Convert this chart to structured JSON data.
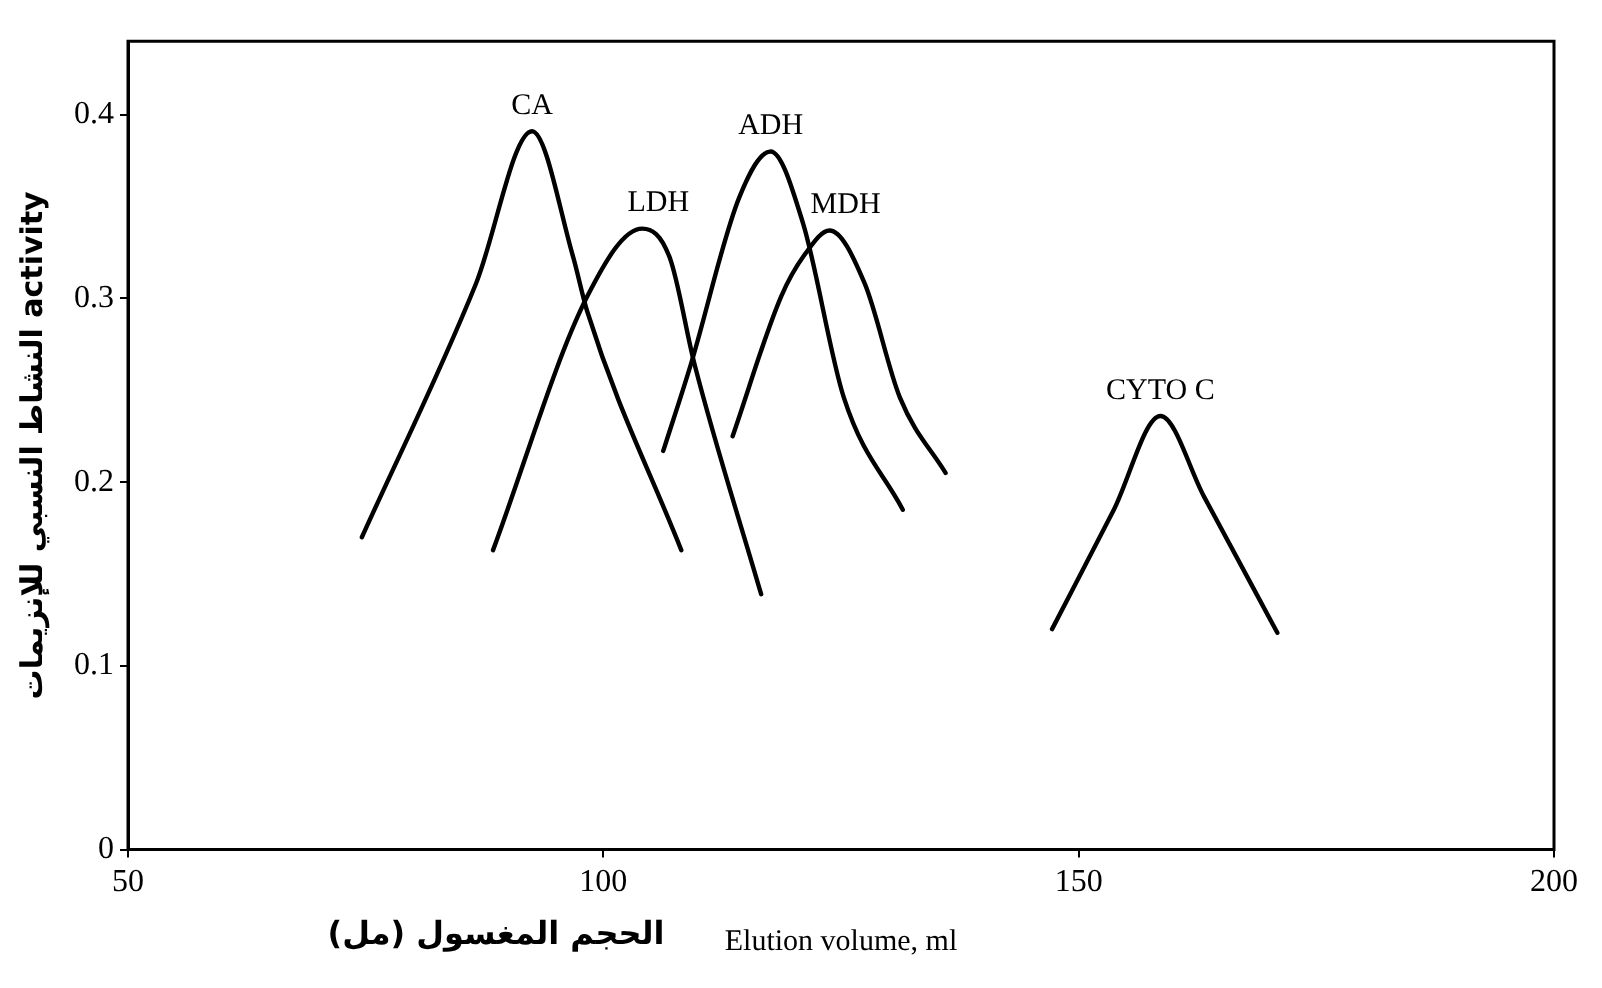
{
  "chart_data": {
    "type": "line",
    "xlabel": "Elution volume, ml",
    "ylabel": "النشاط النسبي للإنزيمات activity",
    "annotations": [
      "الحجم المغسول (مل)"
    ],
    "xlim": [
      50,
      200
    ],
    "ylim": [
      0,
      0.44
    ],
    "xticks": [
      50,
      100,
      150,
      200
    ],
    "yticks": [
      0,
      0.1,
      0.2,
      0.3,
      0.4
    ],
    "grid": false,
    "legend": false,
    "marker": "none",
    "line_style": "solid",
    "series": [
      {
        "name": "CA",
        "color": "#000000",
        "x": [
          74.6,
          86.6,
          92.5,
          96.8,
          98.3,
          108.2
        ],
        "values": [
          0.17,
          0.308,
          0.391,
          0.323,
          0.293,
          0.163
        ]
      },
      {
        "name": "LDH",
        "color": "#000000",
        "x": [
          88.4,
          98.3,
          104.1,
          107,
          109.6,
          116.6
        ],
        "values": [
          0.163,
          0.301,
          0.338,
          0.322,
          0.264,
          0.139
        ]
      },
      {
        "name": "ADH",
        "color": "#000000",
        "x": [
          106.3,
          109.2,
          114.3,
          117.6,
          121,
          125.3,
          131.5
        ],
        "values": [
          0.217,
          0.264,
          0.355,
          0.38,
          0.341,
          0.246,
          0.185
        ]
      },
      {
        "name": "MDH",
        "color": "#000000",
        "x": [
          113.6,
          118.7,
          121.2,
          123.8,
          127.5,
          131.2,
          136
        ],
        "values": [
          0.225,
          0.301,
          0.324,
          0.337,
          0.308,
          0.246,
          0.205
        ]
      },
      {
        "name": "CYTO C",
        "color": "#000000",
        "x": [
          147.2,
          153.7,
          158.6,
          163.2,
          170.9
        ],
        "values": [
          0.12,
          0.185,
          0.236,
          0.192,
          0.118
        ]
      }
    ]
  }
}
